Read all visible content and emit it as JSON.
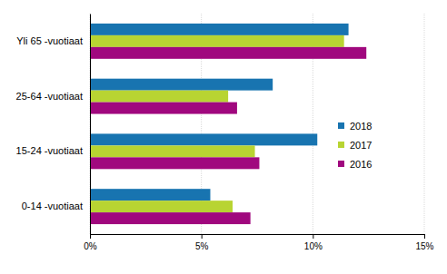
{
  "chart_data": {
    "type": "bar",
    "orientation": "horizontal",
    "categories": [
      "Yli 65 -vuotiaat",
      "25-64 -vuotiaat",
      "15-24 -vuotiaat",
      "0-14 -vuotiaat"
    ],
    "series": [
      {
        "name": "2018",
        "color": "#1874b0",
        "values": [
          11.6,
          8.2,
          10.2,
          5.4
        ]
      },
      {
        "name": "2017",
        "color": "#b8d432",
        "values": [
          11.4,
          6.2,
          7.4,
          6.4
        ]
      },
      {
        "name": "2016",
        "color": "#a0087e",
        "values": [
          12.4,
          6.6,
          7.6,
          7.2
        ]
      }
    ],
    "xlim": [
      0,
      15
    ],
    "xticks": [
      {
        "value": 0,
        "label": "0%"
      },
      {
        "value": 5,
        "label": "5%"
      },
      {
        "value": 10,
        "label": "10%"
      },
      {
        "value": 15,
        "label": "15%"
      }
    ],
    "grid": true,
    "legend": "right"
  }
}
